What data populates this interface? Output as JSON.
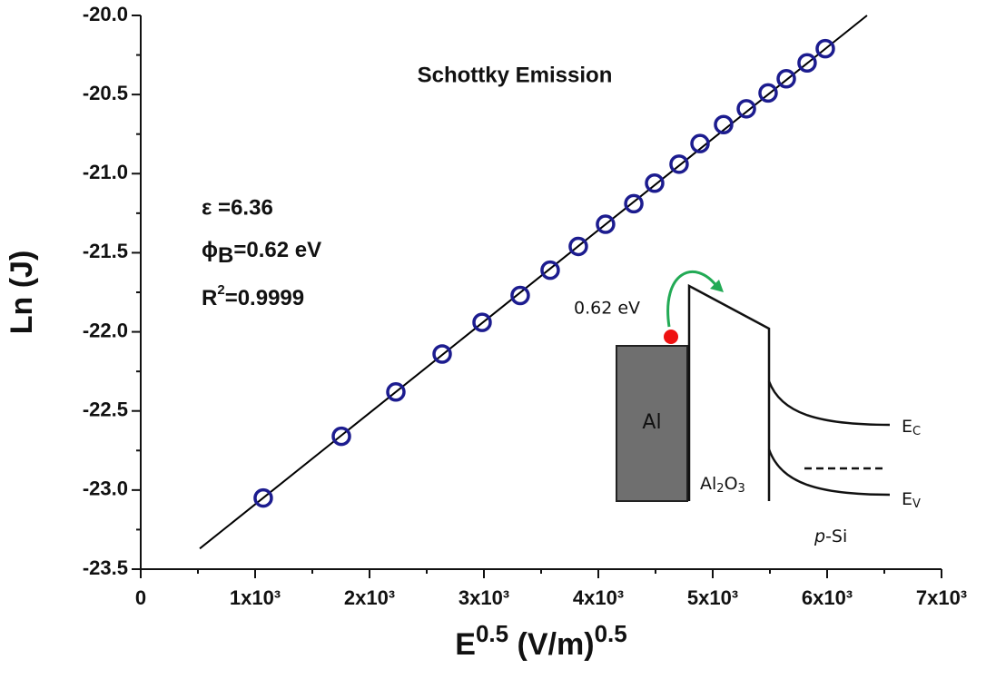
{
  "chart_data": {
    "type": "scatter",
    "title": "Schottky Emission",
    "y_label": "Ln (J)",
    "x_label": {
      "base": "E",
      "sup": "0.5",
      "unit": " (V/m)",
      "unit_sup": "0.5"
    },
    "x": [
      1071,
      1754,
      2230,
      2635,
      2984,
      3317,
      3579,
      3825,
      4063,
      4310,
      4492,
      4706,
      4889,
      5095,
      5294,
      5484,
      5643,
      5825,
      5984
    ],
    "values": [
      -23.05,
      -22.66,
      -22.38,
      -22.14,
      -21.94,
      -21.77,
      -21.61,
      -21.46,
      -21.32,
      -21.19,
      -21.06,
      -20.94,
      -20.81,
      -20.69,
      -20.59,
      -20.49,
      -20.4,
      -20.3,
      -20.21
    ],
    "color": "#1c1c8f",
    "fit_line": {
      "x": [
        516,
        6349
      ],
      "y": [
        -23.37,
        -20.0
      ],
      "color": "#000000"
    },
    "xlim": [
      0,
      7000
    ],
    "ylim": [
      -23.5,
      -20.0
    ],
    "xticks": [
      0,
      {
        "value": 1000,
        "label": "1x10³"
      },
      {
        "value": 2000,
        "label": "2x10³"
      },
      {
        "value": 3000,
        "label": "3x10³"
      },
      {
        "value": 4000,
        "label": "4x10³"
      },
      {
        "value": 5000,
        "label": "5x10³"
      },
      {
        "value": 6000,
        "label": "6x10³"
      },
      {
        "value": 7000,
        "label": "7x10³"
      }
    ],
    "yticks": [
      {
        "value": -23.5,
        "label": "-23.5"
      },
      {
        "value": -23,
        "label": "-23.0"
      },
      -22.5,
      {
        "value": -22,
        "label": "-22.0"
      },
      -21.5,
      {
        "value": -21,
        "label": "-21.0"
      },
      -20.5,
      {
        "value": -20,
        "label": "-20.0"
      }
    ],
    "xminorticks": [
      500,
      1500,
      2500,
      3500,
      4500,
      5500,
      6500
    ],
    "yminorticks": [
      -23.25,
      -22.75,
      -22.25,
      -21.75,
      -21.25,
      -20.75,
      -20.25
    ],
    "annotations": {
      "epsilon": "ε  =6.36",
      "phi": {
        "symbol": "ϕ",
        "sub": "B",
        "rest": "=0.62 eV"
      },
      "r2": {
        "base": "R",
        "sup": "2",
        "rest": "=0.9999"
      }
    },
    "inset": {
      "barrier": "0.62 eV",
      "metal": "Al",
      "oxide": {
        "a": "Al",
        "sub1": "2",
        "b": "O",
        "sub2": "3"
      },
      "ec": {
        "base": "E",
        "sub": "C"
      },
      "ev": {
        "base": "E",
        "sub": "V"
      },
      "semi": {
        "italic": "p",
        "rest": "-Si"
      }
    }
  }
}
